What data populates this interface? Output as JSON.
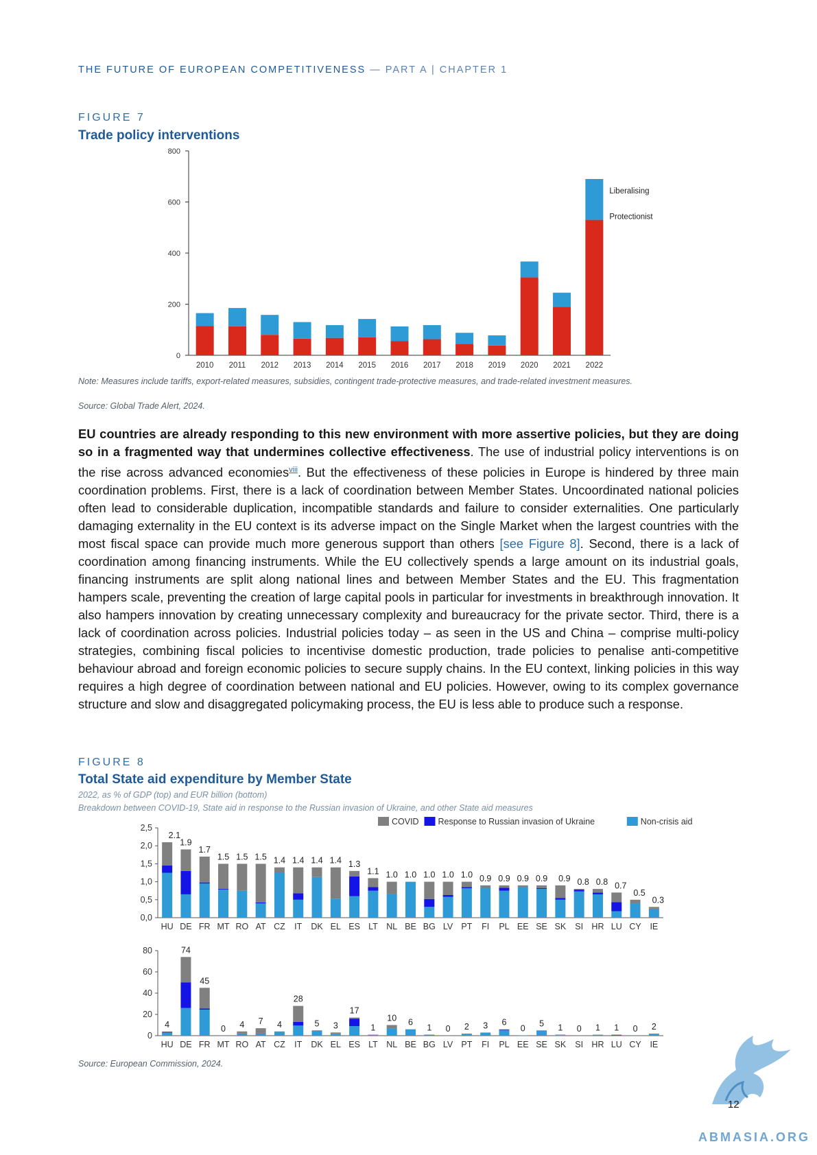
{
  "header": {
    "title": "THE FUTURE OF EUROPEAN COMPETITIVENESS",
    "sub": " — PART A | CHAPTER 1"
  },
  "fig7": {
    "label": "FIGURE 7",
    "title": "Trade policy interventions",
    "note": "Note: Measures include tariffs, export-related measures, subsidies, contingent trade-protective measures, and trade-related investment measures.",
    "source": "Source: Global Trade Alert, 2024."
  },
  "body": {
    "bold": "EU countries are already responding to this new environment with more assertive policies, but they are doing so in a fragmented way that undermines collective effectiveness",
    "p1": ". The use of industrial policy interventions is on the rise across advanced economies",
    "sup": "viii",
    "p2": ". But the effectiveness of these policies in Europe is hindered by three main coordination problems. First, there is a lack of coordination between Member States. Uncoordinated national policies often lead to considerable duplication, incompatible standards and failure to consider externalities. One particularly damaging externality in the EU context is its adverse impact on the Single Market when the largest countries with the most fiscal space can provide much more generous support than others ",
    "link": "[see Figure 8]",
    "p3": ". Second, there is a lack of coordination among financing instruments. While the EU collectively spends a large amount on its industrial goals, financing instruments are split along national lines and between Member States and the EU. This fragmentation hampers scale, preventing the creation of large capital pools in particular for investments in breakthrough innovation. It also hampers innovation by creating unnecessary complexity and bureaucracy for the private sector. Third, there is a lack of coordination across policies. Industrial policies today – as seen in the US and China – comprise multi-policy strategies, combining fiscal policies to incentivise domestic production, trade policies to penalise anti-competitive behaviour abroad and foreign economic policies to secure supply chains. In the EU context, linking policies in this way requires a high degree of coordination between national and EU policies. However, owing to its complex governance structure and slow and disaggregated policymaking process, the EU is less able to produce such a response."
  },
  "fig8": {
    "label": "FIGURE 8",
    "title": "Total State aid expenditure by Member State",
    "sub1": "2022, as % of GDP (top) and EUR billion (bottom)",
    "sub2": "Breakdown between COVID-19, State aid in response to the Russian invasion of Ukraine, and other State aid measures",
    "source": "Source: European Commission, 2024."
  },
  "page_number": "12",
  "watermark": "ABMASIA.ORG",
  "chart_data": [
    {
      "type": "bar",
      "stacked": true,
      "categories": [
        "2010",
        "2011",
        "2012",
        "2013",
        "2014",
        "2015",
        "2016",
        "2017",
        "2018",
        "2019",
        "2020",
        "2021",
        "2022"
      ],
      "series": [
        {
          "name": "Protectionist",
          "color": "#d9291c",
          "values": [
            115,
            113,
            80,
            65,
            68,
            70,
            55,
            63,
            45,
            38,
            305,
            190,
            530
          ]
        },
        {
          "name": "Liberalising",
          "color": "#2e9bd6",
          "values": [
            50,
            72,
            78,
            65,
            50,
            72,
            58,
            55,
            43,
            40,
            62,
            55,
            160
          ]
        }
      ],
      "ylim": [
        0,
        800
      ],
      "yticks": [
        0,
        200,
        400,
        600,
        800
      ],
      "legend": "inline-right"
    },
    {
      "type": "bar",
      "stacked": true,
      "categories": [
        "HU",
        "DE",
        "FR",
        "MT",
        "RO",
        "AT",
        "CZ",
        "IT",
        "DK",
        "EL",
        "ES",
        "LT",
        "NL",
        "BE",
        "BG",
        "LV",
        "PT",
        "FI",
        "PL",
        "EE",
        "SE",
        "SK",
        "SI",
        "HR",
        "LU",
        "CY",
        "IE"
      ],
      "totals": [
        "2.1",
        "1.9",
        "1.7",
        "1.5",
        "1.5",
        "1.5",
        "1.4",
        "1.4",
        "1.4",
        "1.4",
        "1.3",
        "1.1",
        "1.0",
        "1.0",
        "1.0",
        "1.0",
        "1.0",
        "0.9",
        "0.9",
        "0.9",
        "0.9",
        "0.9",
        "0.8",
        "0.8",
        "0.7",
        "0.5",
        "0.3"
      ],
      "series": [
        {
          "name": "Non-crisis aid",
          "color": "#2e9bd6",
          "values": [
            1.25,
            0.65,
            0.95,
            0.78,
            0.75,
            0.4,
            1.25,
            0.5,
            1.13,
            0.53,
            0.6,
            0.75,
            0.65,
            1.0,
            0.3,
            0.58,
            0.82,
            0.83,
            0.75,
            0.85,
            0.8,
            0.5,
            0.73,
            0.65,
            0.18,
            0.4,
            0.25
          ]
        },
        {
          "name": "Response to Russian invasion of Ukraine",
          "color": "#1414e6",
          "values": [
            0.2,
            0.65,
            0.03,
            0.02,
            0.0,
            0.02,
            0.0,
            0.18,
            0.0,
            0.0,
            0.55,
            0.1,
            0.0,
            0.0,
            0.22,
            0.05,
            0.03,
            0.0,
            0.08,
            0.0,
            0.02,
            0.05,
            0.05,
            0.05,
            0.25,
            0.0,
            0.0
          ]
        },
        {
          "name": "COVID",
          "color": "#808080",
          "values": [
            0.65,
            0.6,
            0.72,
            0.7,
            0.75,
            1.08,
            0.15,
            0.72,
            0.27,
            0.87,
            0.15,
            0.25,
            0.35,
            0.0,
            0.48,
            0.37,
            0.15,
            0.07,
            0.07,
            0.05,
            0.08,
            0.35,
            0.02,
            0.1,
            0.27,
            0.1,
            0.05
          ]
        }
      ],
      "ylim": [
        0,
        2.5
      ],
      "yticks": [
        "0,0",
        "0,5",
        "1,0",
        "1,5",
        "2,0",
        "2,5"
      ],
      "legend": "top-right"
    },
    {
      "type": "bar",
      "stacked": true,
      "categories": [
        "HU",
        "DE",
        "FR",
        "MT",
        "RO",
        "AT",
        "CZ",
        "IT",
        "DK",
        "EL",
        "ES",
        "LT",
        "NL",
        "BE",
        "BG",
        "LV",
        "PT",
        "FI",
        "PL",
        "EE",
        "SE",
        "SK",
        "SI",
        "HR",
        "LU",
        "CY",
        "IE"
      ],
      "totals": [
        "4",
        "74",
        "45",
        "0",
        "4",
        "7",
        "4",
        "28",
        "5",
        "3",
        "17",
        "1",
        "10",
        "6",
        "1",
        "0",
        "2",
        "3",
        "6",
        "0",
        "5",
        "1",
        "0",
        "1",
        "1",
        "0",
        "2"
      ],
      "series": [
        {
          "name": "Non-crisis aid",
          "color": "#2e9bd6",
          "values": [
            2.5,
            26,
            24.5,
            0.1,
            2,
            1.8,
            3.6,
            9.5,
            4.5,
            1.8,
            9,
            0.8,
            6.5,
            6,
            0.3,
            0.1,
            1.8,
            2.8,
            5,
            0.2,
            4.8,
            0.5,
            0.1,
            0.8,
            0.3,
            0.1,
            1.8
          ]
        },
        {
          "name": "Response to Russian invasion of Ukraine",
          "color": "#1414e6",
          "values": [
            0.5,
            24,
            1,
            0,
            0,
            0.2,
            0,
            3.5,
            0,
            0,
            7,
            0.1,
            0,
            0,
            0.2,
            0,
            0,
            0,
            0.5,
            0,
            0,
            0,
            0,
            0,
            0.3,
            0,
            0
          ]
        },
        {
          "name": "COVID",
          "color": "#808080",
          "values": [
            1,
            24,
            19.5,
            0,
            2,
            5,
            0.4,
            15,
            0.5,
            1.2,
            1,
            0.1,
            3.5,
            0,
            0.5,
            0,
            0.2,
            0.2,
            0.5,
            0,
            0.2,
            0.5,
            0,
            0.2,
            0.4,
            0,
            0.2
          ]
        }
      ],
      "ylim": [
        0,
        80
      ],
      "yticks": [
        "0",
        "20",
        "40",
        "60",
        "80"
      ]
    }
  ]
}
